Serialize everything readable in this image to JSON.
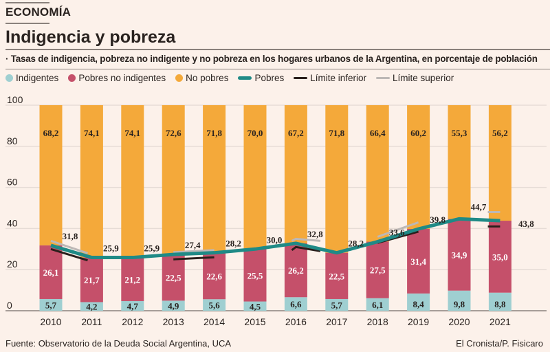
{
  "header": {
    "section": "ECONOMÍA",
    "title": "Indigencia y pobreza",
    "subtitle": "· Tasas de indigencia, pobreza no indigente y no pobreza en los hogares urbanos de la Argentina, en porcentaje de población"
  },
  "footer": {
    "source": "Fuente: Observatorio de la Deuda Social Argentina, UCA",
    "credit": "El Cronista/P. Fisicaro"
  },
  "colors": {
    "indigentes": "#9fcfd1",
    "pobres_no_indigentes": "#c5506a",
    "no_pobres": "#f4a93a",
    "pobres": "#1f8a86",
    "limite_inferior": "#2a1f1c",
    "limite_superior": "#bdb8b6"
  },
  "chart_data": {
    "type": "bar",
    "stacked": true,
    "categories": [
      "2010",
      "2011",
      "2012",
      "2013",
      "2014",
      "2015",
      "2016",
      "2017",
      "2018",
      "2019",
      "2020",
      "2021"
    ],
    "legend": [
      "Indigentes",
      "Pobres no indigentes",
      "No pobres",
      "Pobres",
      "Límite inferior",
      "Límite superior"
    ],
    "legend_position": "top",
    "yticks": [
      "0",
      "20",
      "40",
      "60",
      "80",
      "100"
    ],
    "ylim": [
      0,
      100
    ],
    "grid": true,
    "series": [
      {
        "name": "Indigentes",
        "values": [
          5.7,
          4.2,
          4.7,
          4.9,
          5.6,
          4.5,
          6.6,
          5.7,
          6.1,
          8.4,
          9.8,
          8.8
        ],
        "labels": [
          "5,7",
          "4,2",
          "4,7",
          "4,9",
          "5,6",
          "4,5",
          "6,6",
          "5,7",
          "6,1",
          "8,4",
          "9,8",
          "8,8"
        ]
      },
      {
        "name": "Pobres no indigentes",
        "values": [
          26.1,
          21.7,
          21.2,
          22.5,
          22.6,
          25.5,
          26.2,
          22.5,
          27.5,
          31.4,
          34.9,
          35.0
        ],
        "labels": [
          "26,1",
          "21,7",
          "21,2",
          "22,5",
          "22,6",
          "25,5",
          "26,2",
          "22,5",
          "27,5",
          "31,4",
          "34,9",
          "35,0"
        ]
      },
      {
        "name": "No pobres",
        "values": [
          68.2,
          74.1,
          74.1,
          72.6,
          71.8,
          70.0,
          67.2,
          71.8,
          66.4,
          60.2,
          55.3,
          56.2
        ],
        "labels": [
          "68,2",
          "74,1",
          "74,1",
          "72,6",
          "71,8",
          "70,0",
          "67,2",
          "71,8",
          "66,4",
          "60,2",
          "55,3",
          "56,2"
        ]
      }
    ],
    "line": {
      "name": "Pobres",
      "values": [
        31.8,
        25.9,
        25.9,
        27.4,
        28.2,
        30.0,
        32.8,
        28.2,
        33.6,
        39.8,
        44.7,
        43.8
      ],
      "labels": [
        "31,8",
        "25,9",
        "25,9",
        "27,4",
        "28,2",
        "30,0",
        "32,8",
        "28,2",
        "33,6",
        "39,8",
        "44,7",
        "43,8"
      ]
    },
    "limits": {
      "inferior": [
        [
          [
            0,
            30
          ],
          [
            0.9,
            24.5
          ]
        ],
        [
          [
            3,
            25
          ],
          [
            4,
            26
          ]
        ],
        [
          [
            5.9,
            29.5
          ],
          [
            6,
            31
          ],
          [
            6.6,
            29
          ]
        ],
        [
          [
            8,
            33
          ],
          [
            9,
            38.5
          ]
        ],
        [
          [
            10.7,
            41
          ],
          [
            11,
            41
          ]
        ]
      ],
      "superior": [
        [
          [
            0,
            34
          ],
          [
            0.9,
            28
          ]
        ],
        [
          [
            3,
            28.5
          ],
          [
            4,
            29.5
          ]
        ],
        [
          [
            5.9,
            34
          ],
          [
            6,
            35
          ],
          [
            6.6,
            34
          ]
        ],
        [
          [
            8,
            36
          ],
          [
            9,
            43
          ]
        ],
        [
          [
            10.7,
            48
          ],
          [
            11,
            48
          ]
        ]
      ]
    }
  }
}
